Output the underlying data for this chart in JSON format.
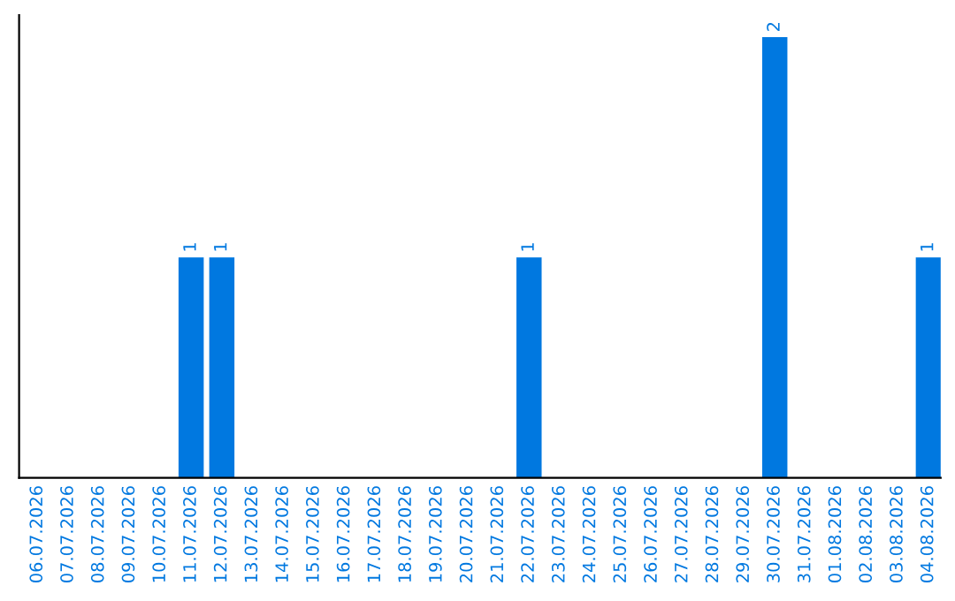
{
  "chart_data": {
    "type": "bar",
    "categories": [
      "06.07.2026",
      "07.07.2026",
      "08.07.2026",
      "09.07.2026",
      "10.07.2026",
      "11.07.2026",
      "12.07.2026",
      "13.07.2026",
      "14.07.2026",
      "15.07.2026",
      "16.07.2026",
      "17.07.2026",
      "18.07.2026",
      "19.07.2026",
      "20.07.2026",
      "21.07.2026",
      "22.07.2026",
      "23.07.2026",
      "24.07.2026",
      "25.07.2026",
      "26.07.2026",
      "27.07.2026",
      "28.07.2026",
      "29.07.2026",
      "30.07.2026",
      "31.07.2026",
      "01.08.2026",
      "02.08.2026",
      "03.08.2026",
      "04.08.2026"
    ],
    "values": [
      0,
      0,
      0,
      0,
      0,
      1,
      1,
      0,
      0,
      0,
      0,
      0,
      0,
      0,
      0,
      0,
      1,
      0,
      0,
      0,
      0,
      0,
      0,
      0,
      2,
      0,
      0,
      0,
      0,
      1
    ],
    "value_labels": [
      null,
      null,
      null,
      null,
      null,
      "1",
      "1",
      null,
      null,
      null,
      null,
      null,
      null,
      null,
      null,
      null,
      "1",
      null,
      null,
      null,
      null,
      null,
      null,
      null,
      "2",
      null,
      null,
      null,
      null,
      "1"
    ],
    "color": "#0078e0",
    "grid": false,
    "legend": false
  }
}
